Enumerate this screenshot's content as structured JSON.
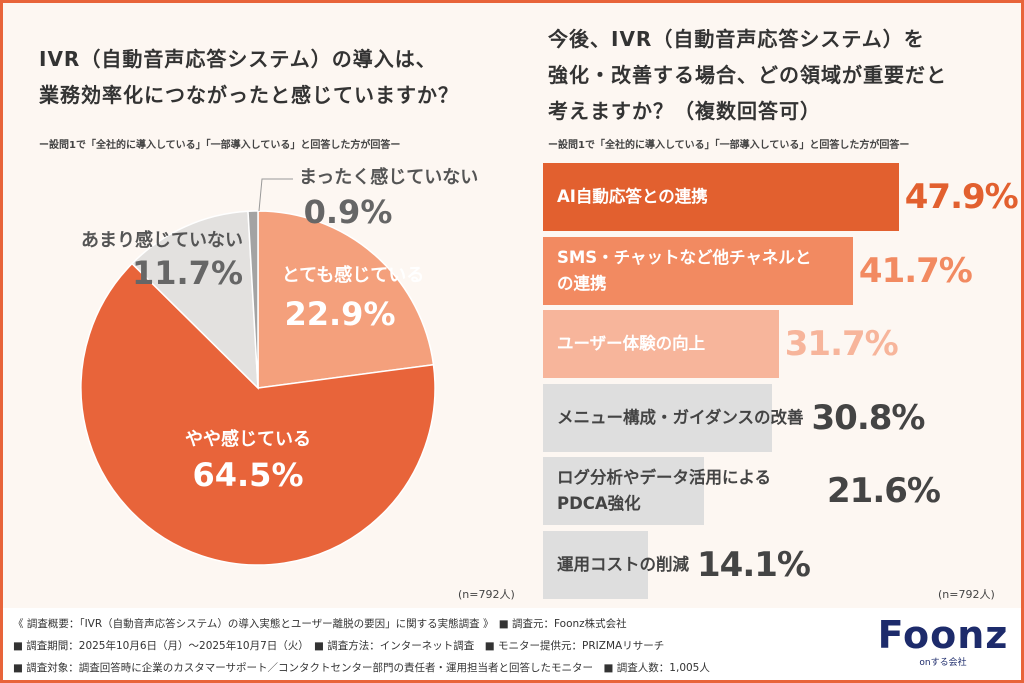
{
  "chart_data": [
    {
      "type": "pie",
      "title": [
        "IVR（自動音声応答システム）の導入は、",
        "業務効率化につながったと感じていますか？"
      ],
      "subtitle": "ー設問1で「全社的に導入している」「一部導入している」と回答した方が回答ー",
      "note": "(n=792人)",
      "categories": [
        "とても感じている",
        "やや感じている",
        "あまり感じていない",
        "まったく感じていない"
      ],
      "values": [
        22.9,
        64.5,
        11.7,
        0.9
      ],
      "value_labels": [
        "22.9%",
        "64.5%",
        "11.7%",
        "0.9%"
      ],
      "colors": [
        "#f4a07c",
        "#e8643a",
        "#e3e1df",
        "#a3a3a3"
      ]
    },
    {
      "type": "hbar",
      "title": [
        "今後、IVR（自動音声応答システム）を",
        "強化・改善する場合、どの領域が重要だと",
        "考えますか？（複数回答可）"
      ],
      "subtitle": "ー設問1で「全社的に導入している」「一部導入している」と回答した方が回答ー",
      "note": "(n=792人)",
      "categories": [
        "AI自動応答との連携",
        "SMS・チャットなど他チャネルとの連携",
        "ユーザー体験の向上",
        "メニュー構成・ガイダンスの改善",
        "ログ分析やデータ活用によるPDCA強化",
        "運用コストの削減"
      ],
      "values": [
        47.9,
        41.7,
        31.7,
        30.8,
        21.6,
        14.1
      ],
      "value_labels": [
        "47.9%",
        "41.7%",
        "31.7%",
        "30.8%",
        "21.6%",
        "14.1%"
      ],
      "colors": [
        "#e2602f",
        "#f28a61",
        "#f7b59b",
        "#dedede",
        "#dedede",
        "#dedede"
      ],
      "label_colors": [
        "#e2602f",
        "#f28a61",
        "#f7b59b",
        "#444444",
        "#444444",
        "#444444"
      ]
    }
  ],
  "footer": {
    "lines": [
      "《 調査概要：「IVR（自動音声応答システム）の導入実態とユーザー離脱の要因」に関する実態調査 》　■ 調査元：Foonz株式会社",
      "■ 調査期間：2025年10月6日（月）〜2025年10月7日（火）　■ 調査方法：インターネット調査　■ モニター提供元：PRIZMAリサーチ",
      "■ 調査対象：調査回答時に企業のカスタマーサポート／コンタクトセンター部門の責任者・運用担当者と回答したモニター　■ 調査人数：1,005人"
    ],
    "logo": {
      "name": "Foonz",
      "tagline": "onする会社"
    }
  }
}
